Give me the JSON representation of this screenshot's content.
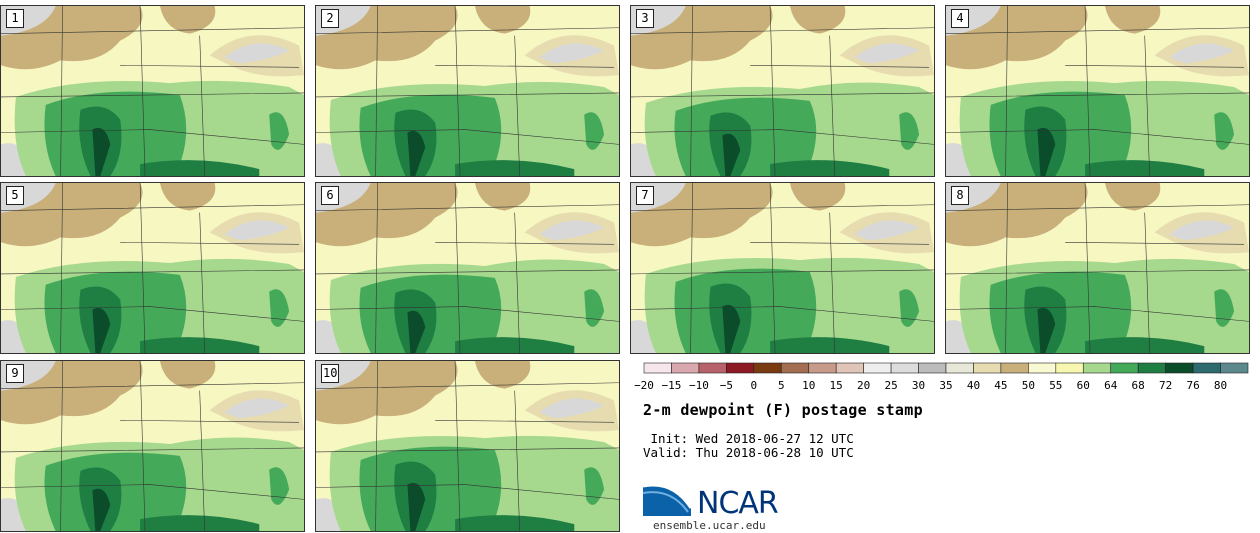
{
  "panels": [
    {
      "label": "1"
    },
    {
      "label": "2"
    },
    {
      "label": "3"
    },
    {
      "label": "4"
    },
    {
      "label": "5"
    },
    {
      "label": "6"
    },
    {
      "label": "7"
    },
    {
      "label": "8"
    },
    {
      "label": "9"
    },
    {
      "label": "10"
    }
  ],
  "colorbar": {
    "colors": [
      "#f7e7ec",
      "#d9a8ae",
      "#b8636b",
      "#8e1a23",
      "#7a3b10",
      "#a36d52",
      "#c69b8a",
      "#e0c4b8",
      "#efeeee",
      "#dcdcdc",
      "#bcbcbc",
      "#e8e8d8",
      "#e6dcb0",
      "#c9b07a",
      "#fafad2",
      "#f7f7b0",
      "#a6d98e",
      "#45a95a",
      "#1f7f43",
      "#0b4d2b",
      "#2e6b6f",
      "#5c8a8c"
    ],
    "ticks": [
      "−20",
      "−15",
      "−10",
      "−5",
      "0",
      "5",
      "10",
      "15",
      "20",
      "25",
      "30",
      "35",
      "40",
      "45",
      "50",
      "55",
      "60",
      "64",
      "68",
      "72",
      "76",
      "80"
    ]
  },
  "title": "2-m dewpoint (F) postage stamp",
  "init_line": " Init: Wed 2018-06-27 12 UTC",
  "valid_line": "Valid: Thu 2018-06-28 10 UTC",
  "logo": {
    "text": "NCAR",
    "url": "ensemble.ucar.edu"
  },
  "map_colors": {
    "base": "#f7f7c2",
    "tan": "#c9b07a",
    "light_tan": "#e6dcb0",
    "grey": "#d8d8d8",
    "light_green": "#a6d98e",
    "mid_green": "#45a95a",
    "dark_green": "#1f7f43",
    "darkest_green": "#0b4d2b"
  }
}
